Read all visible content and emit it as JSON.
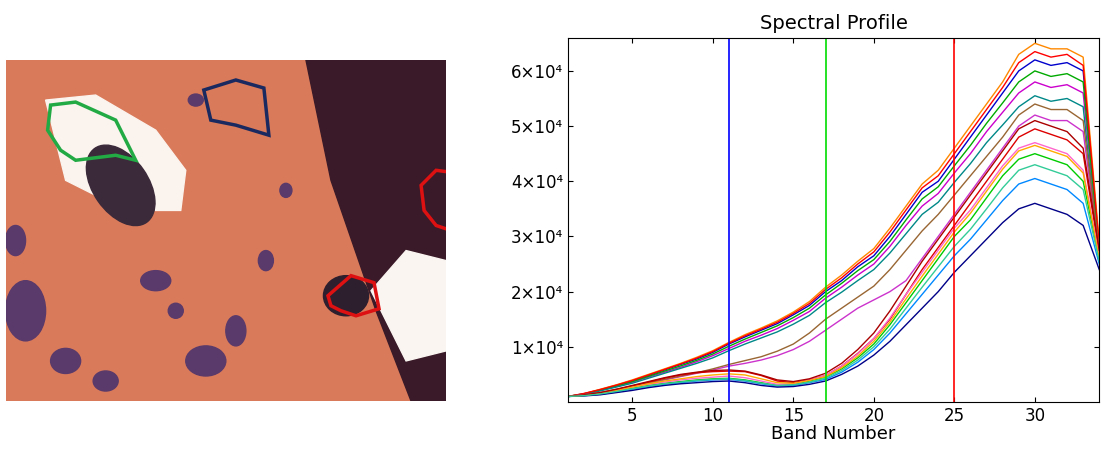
{
  "chart_data": {
    "type": "line",
    "title": "Spectral Profile",
    "x_label": "Band Number",
    "x": [
      1,
      2,
      3,
      4,
      5,
      6,
      7,
      8,
      9,
      10,
      11,
      12,
      13,
      14,
      15,
      16,
      17,
      18,
      19,
      20,
      21,
      22,
      23,
      24,
      25,
      26,
      27,
      28,
      29,
      30,
      31,
      32,
      33,
      34
    ],
    "xlim": [
      1,
      34
    ],
    "xticks": [
      5,
      10,
      15,
      20,
      25,
      30
    ],
    "ylim": [
      0,
      66000
    ],
    "yticks": [
      {
        "value": 10000,
        "label": "1×10⁴"
      },
      {
        "value": 20000,
        "label": "2×10⁴"
      },
      {
        "value": 30000,
        "label": "3×10⁴"
      },
      {
        "value": 40000,
        "label": "4×10⁴"
      },
      {
        "value": 50000,
        "label": "5×10⁴"
      },
      {
        "value": 60000,
        "label": "6×10⁴"
      }
    ],
    "vlines": [
      {
        "x": 11,
        "color": "#0000ff"
      },
      {
        "x": 17,
        "color": "#00dd00"
      },
      {
        "x": 25,
        "color": "#ff0000"
      }
    ],
    "series": [
      {
        "color": "#0000cc",
        "values": [
          1000,
          1500,
          2200,
          3000,
          3800,
          4800,
          5800,
          6800,
          7800,
          9000,
          10500,
          11800,
          13000,
          14200,
          15800,
          17500,
          20000,
          22000,
          24500,
          26500,
          30000,
          34000,
          38000,
          40000,
          44000,
          48000,
          52000,
          56000,
          60000,
          62000,
          61000,
          61500,
          60000,
          28000
        ]
      },
      {
        "color": "#ff8800",
        "values": [
          1000,
          1500,
          2300,
          3100,
          4000,
          5000,
          6000,
          7000,
          8100,
          9300,
          10800,
          12200,
          13400,
          14700,
          16300,
          18200,
          20800,
          23000,
          25500,
          27800,
          31500,
          35500,
          39500,
          42000,
          46000,
          50000,
          54000,
          58000,
          63000,
          65000,
          64000,
          64000,
          62500,
          29000
        ]
      },
      {
        "color": "#cc00cc",
        "values": [
          1000,
          1400,
          2100,
          2800,
          3600,
          4500,
          5400,
          6300,
          7300,
          8400,
          9700,
          11000,
          12100,
          13300,
          14800,
          16400,
          18800,
          20800,
          23000,
          25000,
          28200,
          32000,
          35500,
          37800,
          41500,
          45000,
          49000,
          52500,
          56000,
          58000,
          57000,
          57500,
          56000,
          27000
        ]
      },
      {
        "color": "#00aa00",
        "values": [
          1000,
          1450,
          2150,
          2900,
          3700,
          4650,
          5600,
          6550,
          7550,
          8700,
          10100,
          11400,
          12600,
          13800,
          15300,
          17000,
          19400,
          21500,
          23800,
          25800,
          29100,
          33000,
          36800,
          39000,
          42800,
          46500,
          50500,
          54200,
          58000,
          60000,
          59000,
          59500,
          58000,
          27500
        ]
      },
      {
        "color": "#008888",
        "values": [
          1000,
          1350,
          2000,
          2700,
          3400,
          4300,
          5200,
          6100,
          7000,
          8000,
          9300,
          10500,
          11600,
          12700,
          14100,
          15700,
          18000,
          19900,
          22000,
          24000,
          27000,
          30500,
          34000,
          36200,
          39800,
          43200,
          47000,
          50200,
          53500,
          55500,
          54500,
          55000,
          53500,
          26000
        ]
      },
      {
        "color": "#ff0000",
        "values": [
          1000,
          1550,
          2250,
          3050,
          3900,
          4900,
          5900,
          6900,
          7950,
          9150,
          10650,
          12000,
          13200,
          14450,
          16050,
          17850,
          20400,
          22500,
          25000,
          27200,
          30800,
          34800,
          38800,
          41000,
          45000,
          49000,
          53000,
          57000,
          61500,
          63500,
          62500,
          63000,
          61000,
          28500
        ]
      },
      {
        "color": "#cc33cc",
        "values": [
          1000,
          1300,
          1700,
          2200,
          2800,
          3400,
          4000,
          4600,
          5200,
          5800,
          6500,
          7000,
          7600,
          8400,
          9500,
          11000,
          13000,
          15000,
          17000,
          18500,
          20000,
          22000,
          26000,
          30000,
          34000,
          38000,
          42000,
          46000,
          50000,
          52000,
          51000,
          51000,
          49000,
          27000
        ]
      },
      {
        "color": "#996633",
        "values": [
          1000,
          1300,
          1700,
          2300,
          2900,
          3500,
          4100,
          4700,
          5300,
          6000,
          6800,
          7500,
          8200,
          9200,
          10500,
          12500,
          15000,
          17000,
          19000,
          21000,
          24000,
          27500,
          31000,
          34000,
          37500,
          41000,
          44500,
          48000,
          52000,
          54000,
          53000,
          53000,
          51000,
          27500
        ]
      },
      {
        "color": "#dd0000",
        "values": [
          1000,
          1200,
          1600,
          2200,
          2900,
          3600,
          4300,
          4900,
          5300,
          5500,
          5600,
          5500,
          4800,
          3800,
          3500,
          4000,
          4800,
          6500,
          8800,
          11500,
          15000,
          19500,
          24000,
          28000,
          32000,
          36000,
          40000,
          44000,
          48000,
          49500,
          48500,
          47500,
          45000,
          27000
        ]
      },
      {
        "color": "#00cc00",
        "values": [
          1000,
          1200,
          1500,
          2000,
          2500,
          3000,
          3400,
          3700,
          4000,
          4200,
          4300,
          4000,
          3500,
          3000,
          3200,
          3800,
          4500,
          6000,
          8000,
          10500,
          14000,
          18000,
          22000,
          26000,
          30000,
          33000,
          37000,
          41000,
          44000,
          45000,
          44000,
          43000,
          40000,
          26000
        ]
      },
      {
        "color": "#0088ff",
        "values": [
          1000,
          1150,
          1400,
          1800,
          2300,
          2800,
          3200,
          3500,
          3800,
          4000,
          4100,
          3800,
          3300,
          2900,
          3000,
          3500,
          4100,
          5400,
          7200,
          9500,
          12500,
          16000,
          19500,
          23000,
          26500,
          29500,
          33000,
          36500,
          39500,
          40500,
          39500,
          38500,
          36000,
          25000
        ]
      },
      {
        "color": "#ff66cc",
        "values": [
          1000,
          1250,
          1550,
          2100,
          2700,
          3200,
          3600,
          4000,
          4300,
          4500,
          4700,
          4400,
          3800,
          3200,
          3300,
          4000,
          4800,
          6500,
          8700,
          11500,
          15200,
          19500,
          23500,
          27500,
          31500,
          34800,
          38800,
          42800,
          46000,
          47000,
          46000,
          45000,
          42000,
          26500
        ]
      },
      {
        "color": "#000088",
        "values": [
          1000,
          1100,
          1300,
          1700,
          2100,
          2600,
          3000,
          3300,
          3500,
          3700,
          3800,
          3500,
          3000,
          2700,
          2800,
          3200,
          3800,
          5000,
          6500,
          8500,
          11000,
          14000,
          17000,
          20000,
          23500,
          26500,
          29500,
          32500,
          35000,
          36000,
          35000,
          34000,
          32000,
          24000
        ]
      },
      {
        "color": "#ffaa00",
        "values": [
          1000,
          1200,
          1600,
          2100,
          2700,
          3300,
          3800,
          4200,
          4600,
          4900,
          5100,
          4900,
          4200,
          3500,
          3400,
          3900,
          4600,
          6200,
          8300,
          11000,
          14500,
          18700,
          22800,
          26800,
          30800,
          34200,
          38200,
          42200,
          45500,
          46500,
          45500,
          44500,
          41500,
          26000
        ]
      },
      {
        "color": "#aa0000",
        "values": [
          1000,
          1300,
          1700,
          2300,
          3000,
          3700,
          4400,
          5000,
          5400,
          5700,
          5800,
          5600,
          4900,
          4000,
          3700,
          4200,
          5200,
          7000,
          9500,
          12500,
          16500,
          21000,
          25500,
          29500,
          33500,
          37500,
          41500,
          45500,
          49500,
          51000,
          50000,
          49000,
          46000,
          27500
        ]
      },
      {
        "color": "#33cc99",
        "values": [
          1000,
          1150,
          1450,
          1900,
          2400,
          2900,
          3300,
          3600,
          3900,
          4100,
          4200,
          3900,
          3400,
          3000,
          3100,
          3600,
          4300,
          5700,
          7600,
          10000,
          13200,
          17000,
          20800,
          24500,
          28200,
          31300,
          35000,
          38800,
          42000,
          43000,
          42000,
          41000,
          38500,
          25500
        ]
      }
    ]
  }
}
